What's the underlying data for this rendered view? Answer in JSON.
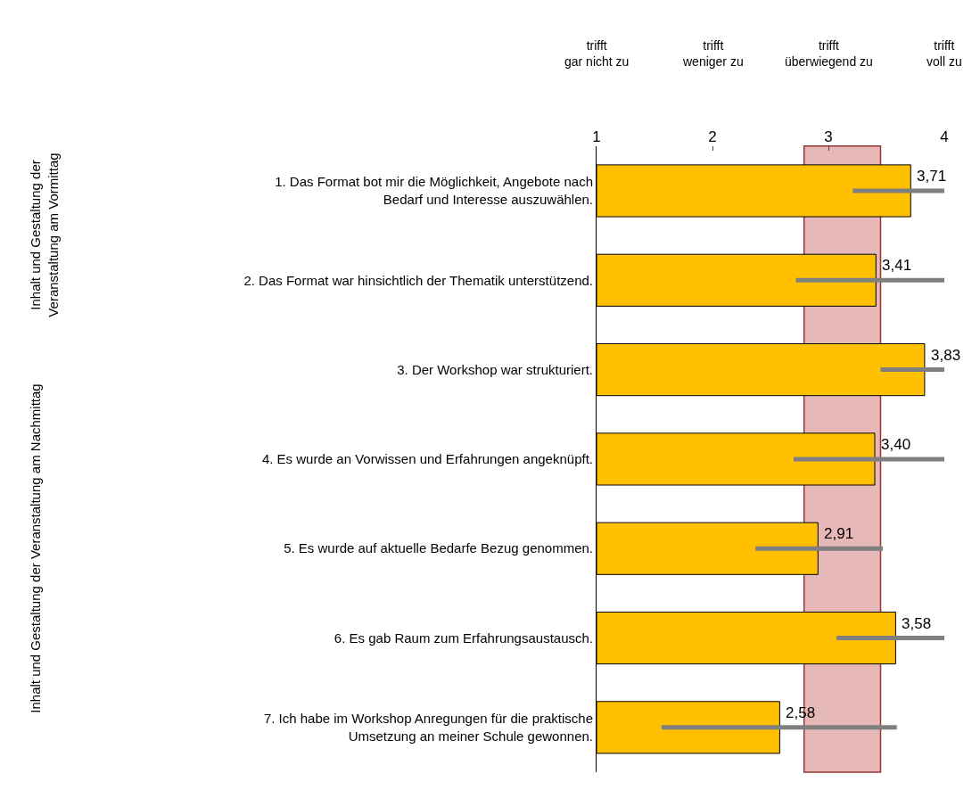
{
  "chart_data": {
    "type": "bar",
    "orientation": "horizontal",
    "categories": [
      "1. Das Format bot mir die Möglichkeit, Angebote nach Bedarf und Interesse auszuwählen.",
      "2. Das Format war hinsichtlich der Thematik unterstützend.",
      "3. Der Workshop war strukturiert.",
      "4. Es wurde an Vorwissen und Erfahrungen angeknüpft.",
      "5. Es wurde auf aktuelle Bedarfe Bezug genommen.",
      "6. Es gab Raum zum Erfahrungsaustausch.",
      "7. Ich habe im Workshop Anregungen für die praktische Umsetzung an meiner Schule gewonnen."
    ],
    "values": [
      3.71,
      3.41,
      3.83,
      3.4,
      2.91,
      3.58,
      2.58
    ],
    "value_labels": [
      "3,71",
      "3,41",
      "3,83",
      "3,40",
      "2,91",
      "3,58",
      "2,58"
    ],
    "errors": [
      [
        3.21,
        4.0
      ],
      [
        2.72,
        4.0
      ],
      [
        3.45,
        4.0
      ],
      [
        2.7,
        4.0
      ],
      [
        2.37,
        3.47
      ],
      [
        3.07,
        4.0
      ],
      [
        1.56,
        3.59
      ]
    ],
    "color": "#ffc000",
    "xlim": [
      1,
      4
    ],
    "xticks": [
      1,
      2,
      3,
      4
    ],
    "bands": [
      {
        "axis": "x",
        "from": 2.79,
        "to": 3.45,
        "color": "#e6b8b7"
      }
    ],
    "annotations": [
      "Inhalt und Gestaltung der Veranstaltung am Vormittag",
      "Inhalt und Gestaltung der Veranstaltung am Nachmittag",
      "trifft\ngar nicht zu",
      "trifft\nweniger zu",
      "trifft\nüberwiegend zu",
      "trifft\nvoll zu"
    ],
    "grid": false,
    "legend": false
  }
}
